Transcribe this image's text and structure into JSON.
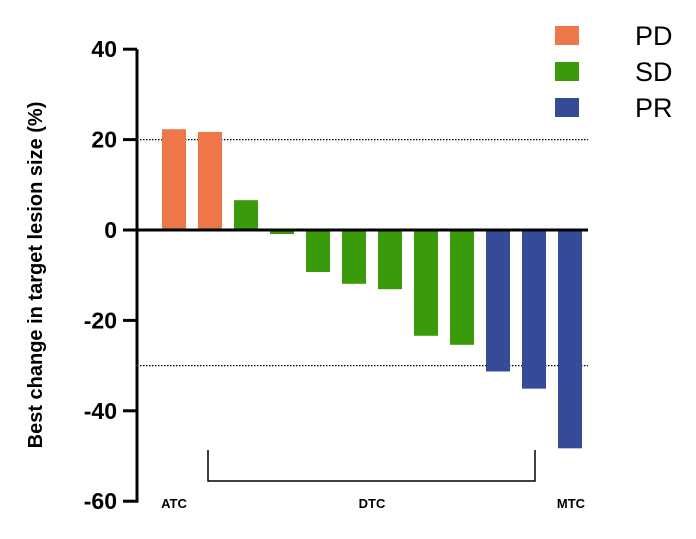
{
  "chart_data": {
    "type": "bar",
    "title": "",
    "xlabel": "",
    "ylabel": "Best change in target lesion size (%)",
    "ylim": [
      -60,
      40
    ],
    "yticks": [
      40,
      20,
      0,
      -20,
      -40,
      -60
    ],
    "reference_lines": [
      20,
      -30
    ],
    "values": [
      22.3,
      21.7,
      6.6,
      -0.9,
      -9.3,
      -11.9,
      -13.1,
      -23.4,
      -25.4,
      -31.3,
      -35.1,
      -48.3
    ],
    "response": [
      "PD",
      "PD",
      "SD",
      "SD",
      "SD",
      "SD",
      "SD",
      "SD",
      "SD",
      "PR",
      "PR",
      "PR"
    ],
    "legend": [
      {
        "label": "PD",
        "color": "#EE774A"
      },
      {
        "label": "SD",
        "color": "#3A9A0A"
      },
      {
        "label": "PR",
        "color": "#344B97"
      }
    ],
    "legend_position": "top-right",
    "groups": [
      {
        "label": "ATC",
        "from": 0,
        "to": 0
      },
      {
        "label": "DTC",
        "from": 1,
        "to": 10
      },
      {
        "label": "MTC",
        "from": 11,
        "to": 11
      }
    ]
  }
}
